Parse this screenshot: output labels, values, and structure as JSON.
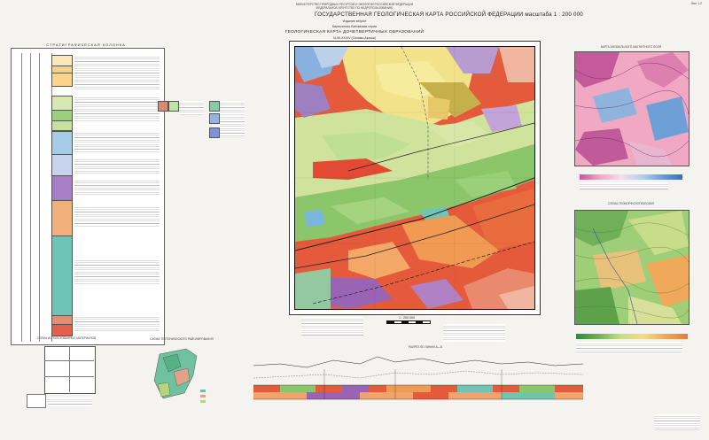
{
  "header": {
    "org_lines": [
      "МИНИСТЕРСТВО ПРИРОДНЫХ РЕСУРСОВ И ЭКОЛОГИИ РОССИЙСКОЙ ФЕДЕРАЦИИ",
      "ФЕДЕРАЛЬНОЕ АГЕНТСТВО ПО НЕДРОПОЛЬЗОВАНИЮ"
    ],
    "title": "ГОСУДАРСТВЕННАЯ ГЕОЛОГИЧЕСКАЯ КАРТА РОССИЙСКОЙ ФЕДЕРАЦИИ",
    "scale": "масштаба 1 : 200 000",
    "edition": "Издание второе",
    "series": "Бирюсинско-Витимская серия",
    "map_title": "ГЕОЛОГИЧЕСКАЯ КАРТА ДОЧЕТВЕРТИЧНЫХ ОБРАЗОВАНИЙ",
    "sheet": "N-49-XXXIV (Селиво-Акаски)",
    "corner": "Лист 1-2"
  },
  "strat": {
    "title": "СТРАТИГРАФИЧЕСКАЯ КОЛОНКА"
  },
  "scale_note": "1 : 200 000",
  "inset_top_title": "КАРТА АНОМАЛЬНОГО МАГНИТНОГО ПОЛЯ",
  "inset_bottom_title": "СХЕМА ГЕОМОРФОЛОГИЧЕСКАЯ",
  "section_title": "РАЗРЕЗ ПО ЛИНИИ А—Б",
  "bottom_left_title": "СХЕМА ИСПОЛЬЗОВАННЫХ МАТЕРИАЛОВ",
  "bottom_mid_title": "СХЕМА ТЕКТОНИЧЕСКОГО РАЙОНИРОВАНИЯ",
  "colors": {
    "red": "#e0432c",
    "orange": "#f09a54",
    "yellow": "#f6e07a",
    "green": "#8cc66a",
    "lightgreen": "#cfe3a5",
    "blue": "#7fb4dc",
    "purple": "#9a64b4",
    "pink": "#f1a8c3",
    "teal": "#6ec3b4"
  }
}
